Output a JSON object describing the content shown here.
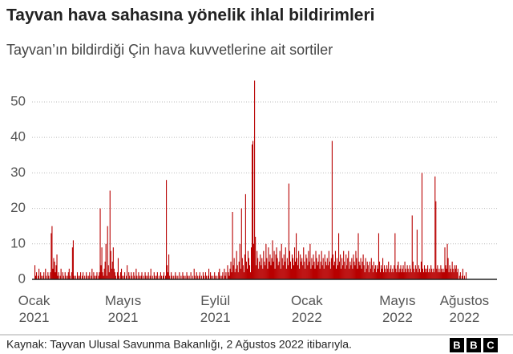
{
  "chart_data": {
    "type": "bar",
    "title": "Tayvan hava sahasına yönelik ihlal bildirimleri",
    "subtitle": "Tayvan’ın bildirdiği Çin hava kuvvetlerine ait sortiler",
    "source": "Kaynak: Tayvan Ulusal Savunma Bakanlığı, 2 Ağustos 2022 itibarıyla.",
    "logo": [
      "B",
      "B",
      "C"
    ],
    "color": "#b80000",
    "grid": true,
    "ylim": [
      0,
      57
    ],
    "yticks": [
      0,
      10,
      20,
      30,
      40,
      50
    ],
    "categories": [
      "Ocak 2021",
      null,
      null,
      null,
      null,
      null,
      null,
      null,
      null,
      null,
      null,
      null,
      null,
      null,
      null,
      null,
      null,
      null,
      null,
      null,
      null,
      null,
      null,
      null,
      null,
      null,
      null,
      null,
      null,
      null,
      null,
      null,
      null,
      null,
      null,
      null,
      null,
      null,
      null,
      null,
      null,
      null,
      null,
      null,
      null,
      null,
      null,
      null,
      null,
      null,
      null,
      null,
      null,
      null,
      null,
      null,
      null,
      null,
      null,
      null,
      null,
      null,
      null,
      null,
      null,
      null,
      null,
      null,
      null,
      null,
      null,
      null,
      null,
      null,
      null,
      null,
      null,
      null,
      null,
      null,
      null,
      null,
      null,
      null,
      null,
      null,
      null,
      null,
      null,
      null,
      null,
      null,
      null,
      null,
      null,
      null,
      null,
      null,
      null,
      null,
      null,
      null,
      null,
      null,
      null,
      null,
      null,
      null,
      null,
      "Mayıs 2021",
      null,
      null,
      null,
      null,
      null,
      null,
      null,
      null,
      null,
      null,
      null,
      null,
      null,
      null,
      null,
      null,
      null,
      null,
      null,
      null,
      null,
      null,
      null,
      null,
      null,
      null,
      null,
      null,
      null,
      null,
      null,
      null,
      null,
      null,
      null,
      null,
      null,
      null,
      null,
      null,
      null,
      null,
      null,
      null,
      null,
      null,
      null,
      null,
      null,
      null,
      null,
      null,
      null,
      null,
      null,
      null,
      null,
      null,
      null,
      null,
      null,
      null,
      null,
      null,
      null,
      null,
      null,
      null,
      null,
      null,
      null,
      null,
      null,
      null,
      null,
      null,
      null,
      null,
      null,
      null,
      null,
      null,
      null,
      null,
      null,
      null,
      null,
      null,
      null,
      null,
      null,
      null,
      null,
      null,
      null,
      null,
      null,
      null,
      null,
      null,
      null,
      null,
      null,
      null,
      null,
      null,
      null,
      null,
      null,
      null,
      null,
      null,
      "Eylül 2021",
      null,
      null,
      null,
      null,
      null,
      null,
      null,
      null,
      null,
      null,
      null,
      null,
      null,
      null,
      null,
      null,
      null,
      null,
      null,
      null,
      null,
      null,
      null,
      null,
      null,
      null,
      null,
      null,
      null,
      null,
      null,
      null,
      null,
      null,
      null,
      null,
      null,
      null,
      null,
      null,
      null,
      null,
      null,
      null,
      null,
      null,
      null,
      null,
      null,
      null,
      null,
      null,
      null,
      null,
      null,
      null,
      null,
      null,
      null,
      null,
      null,
      null,
      null,
      null,
      null,
      null,
      null,
      null,
      null,
      null,
      null,
      null,
      null,
      null,
      null,
      null,
      null,
      null,
      null,
      null,
      null,
      null,
      null,
      null,
      null,
      null,
      null,
      null,
      null,
      null,
      null,
      null,
      null,
      null,
      null,
      null,
      null,
      null,
      null,
      null,
      null,
      null,
      null,
      null,
      null,
      null,
      null,
      null,
      null,
      null,
      null,
      "Ocak 2022",
      null,
      null,
      null,
      null,
      null,
      null,
      null,
      null,
      null,
      null,
      null,
      null,
      null,
      null,
      null,
      null,
      null,
      null,
      null,
      null,
      null,
      null,
      null,
      null,
      null,
      null,
      null,
      null,
      null,
      null,
      null,
      null,
      null,
      null,
      null,
      null,
      null,
      null,
      null,
      null,
      null,
      null,
      null,
      null,
      null,
      null,
      null,
      null,
      null,
      null,
      null,
      null,
      null,
      null,
      null,
      null,
      null,
      null,
      null,
      null,
      null,
      null,
      null,
      null,
      null,
      null,
      null,
      null,
      null,
      null,
      null,
      null,
      null,
      null,
      null,
      null,
      null,
      null,
      null,
      null,
      null,
      null,
      null,
      null,
      null,
      null,
      null,
      null,
      null,
      null,
      null,
      null,
      null,
      null,
      null,
      null,
      null,
      null,
      null,
      null,
      null,
      null,
      null,
      null,
      null,
      null,
      null,
      null,
      null,
      null,
      "Mayıs 2022",
      null,
      null,
      null,
      null,
      null,
      null,
      null,
      null,
      null,
      null,
      null,
      null,
      null,
      null,
      null,
      null,
      null,
      null,
      null,
      null,
      null,
      null,
      null,
      null,
      null,
      null,
      null,
      null,
      null,
      null,
      null,
      null,
      null,
      null,
      null,
      null,
      null,
      null,
      null,
      null,
      null,
      null,
      null,
      null,
      null,
      null,
      null,
      null,
      null,
      null,
      null,
      null,
      null,
      null,
      null,
      null,
      null,
      null,
      null,
      null,
      null,
      null,
      null,
      null,
      null,
      null,
      null,
      null,
      null,
      null,
      null,
      null,
      null,
      null,
      null,
      null,
      null,
      null,
      null,
      null,
      null,
      "Ağustos 2022",
      null,
      null
    ],
    "values": [
      0,
      4,
      1,
      2,
      0,
      1,
      3,
      0,
      2,
      1,
      0,
      1,
      2,
      0,
      3,
      1,
      0,
      2,
      1,
      0,
      2,
      13,
      15,
      3,
      6,
      5,
      2,
      4,
      7,
      1,
      2,
      0,
      1,
      3,
      0,
      2,
      1,
      0,
      2,
      1,
      0,
      1,
      2,
      3,
      1,
      0,
      2,
      9,
      11,
      1,
      0,
      1,
      0,
      2,
      1,
      0,
      1,
      2,
      0,
      1,
      2,
      0,
      1,
      0,
      2,
      1,
      0,
      1,
      2,
      0,
      1,
      3,
      0,
      2,
      1,
      0,
      1,
      2,
      0,
      1,
      2,
      20,
      4,
      9,
      2,
      1,
      3,
      5,
      10,
      1,
      15,
      4,
      2,
      25,
      8,
      3,
      5,
      9,
      3,
      2,
      1,
      0,
      2,
      6,
      1,
      0,
      2,
      3,
      1,
      0,
      1,
      2,
      0,
      1,
      4,
      0,
      2,
      1,
      0,
      2,
      1,
      0,
      2,
      1,
      0,
      3,
      1,
      0,
      2,
      1,
      0,
      1,
      2,
      0,
      1,
      0,
      2,
      1,
      0,
      1,
      2,
      0,
      1,
      3,
      0,
      1,
      0,
      2,
      1,
      0,
      1,
      2,
      0,
      1,
      0,
      2,
      1,
      0,
      1,
      2,
      0,
      1,
      28,
      4,
      2,
      7,
      1,
      0,
      2,
      1,
      0,
      1,
      0,
      2,
      1,
      0,
      1,
      0,
      2,
      0,
      1,
      0,
      2,
      1,
      0,
      1,
      0,
      2,
      1,
      0,
      1,
      0,
      2,
      0,
      1,
      0,
      3,
      1,
      0,
      2,
      1,
      0,
      1,
      2,
      0,
      1,
      0,
      2,
      1,
      0,
      2,
      1,
      0,
      1,
      3,
      0,
      2,
      1,
      0,
      1,
      0,
      2,
      1,
      0,
      1,
      0,
      2,
      3,
      1,
      0,
      1,
      2,
      0,
      3,
      1,
      2,
      0,
      4,
      2,
      1,
      3,
      5,
      2,
      19,
      4,
      6,
      2,
      3,
      8,
      4,
      2,
      5,
      10,
      3,
      20,
      6,
      4,
      2,
      7,
      24,
      5,
      3,
      8,
      6,
      4,
      2,
      9,
      38,
      39,
      10,
      56,
      12,
      4,
      8,
      6,
      3,
      5,
      7,
      4,
      6,
      3,
      8,
      5,
      4,
      10,
      6,
      3,
      9,
      5,
      7,
      4,
      6,
      11,
      5,
      8,
      3,
      7,
      9,
      6,
      4,
      5,
      8,
      3,
      10,
      6,
      4,
      7,
      5,
      9,
      3,
      6,
      4,
      27,
      8,
      5,
      3,
      7,
      6,
      4,
      9,
      5,
      13,
      6,
      4,
      8,
      3,
      7,
      5,
      6,
      4,
      9,
      5,
      3,
      7,
      6,
      4,
      8,
      5,
      10,
      3,
      6,
      4,
      7,
      5,
      3,
      8,
      6,
      4,
      5,
      7,
      3,
      5,
      8,
      4,
      6,
      3,
      7,
      5,
      4,
      6,
      4,
      8,
      5,
      3,
      6,
      39,
      7,
      4,
      5,
      8,
      3,
      6,
      4,
      13,
      5,
      7,
      3,
      6,
      4,
      8,
      5,
      3,
      7,
      4,
      6,
      8,
      3,
      5,
      4,
      6,
      3,
      7,
      5,
      4,
      8,
      6,
      3,
      13,
      5,
      4,
      6,
      3,
      5,
      7,
      4,
      2,
      6,
      3,
      5,
      4,
      2,
      5,
      3,
      6,
      4,
      2,
      5,
      3,
      4,
      2,
      4,
      3,
      13,
      5,
      2,
      4,
      3,
      6,
      2,
      4,
      3,
      2,
      4,
      3,
      5,
      2,
      3,
      4,
      2,
      3,
      2,
      4,
      13,
      3,
      2,
      4,
      5,
      2,
      3,
      4,
      2,
      3,
      4,
      2,
      5,
      3,
      2,
      4,
      3,
      2,
      4,
      3,
      2,
      18,
      5,
      3,
      2,
      4,
      3,
      14,
      2,
      4,
      3,
      2,
      5,
      30,
      3,
      2,
      4,
      3,
      2,
      3,
      4,
      2,
      3,
      2,
      4,
      3,
      2,
      3,
      2,
      29,
      22,
      3,
      4,
      2,
      3,
      2,
      4,
      3,
      2,
      3,
      2,
      9,
      4,
      3,
      10,
      6,
      2,
      4,
      3,
      2,
      5,
      3,
      2,
      4,
      3,
      4,
      2,
      3,
      0,
      1,
      2,
      0,
      1,
      3,
      0,
      1,
      0,
      2
    ]
  }
}
